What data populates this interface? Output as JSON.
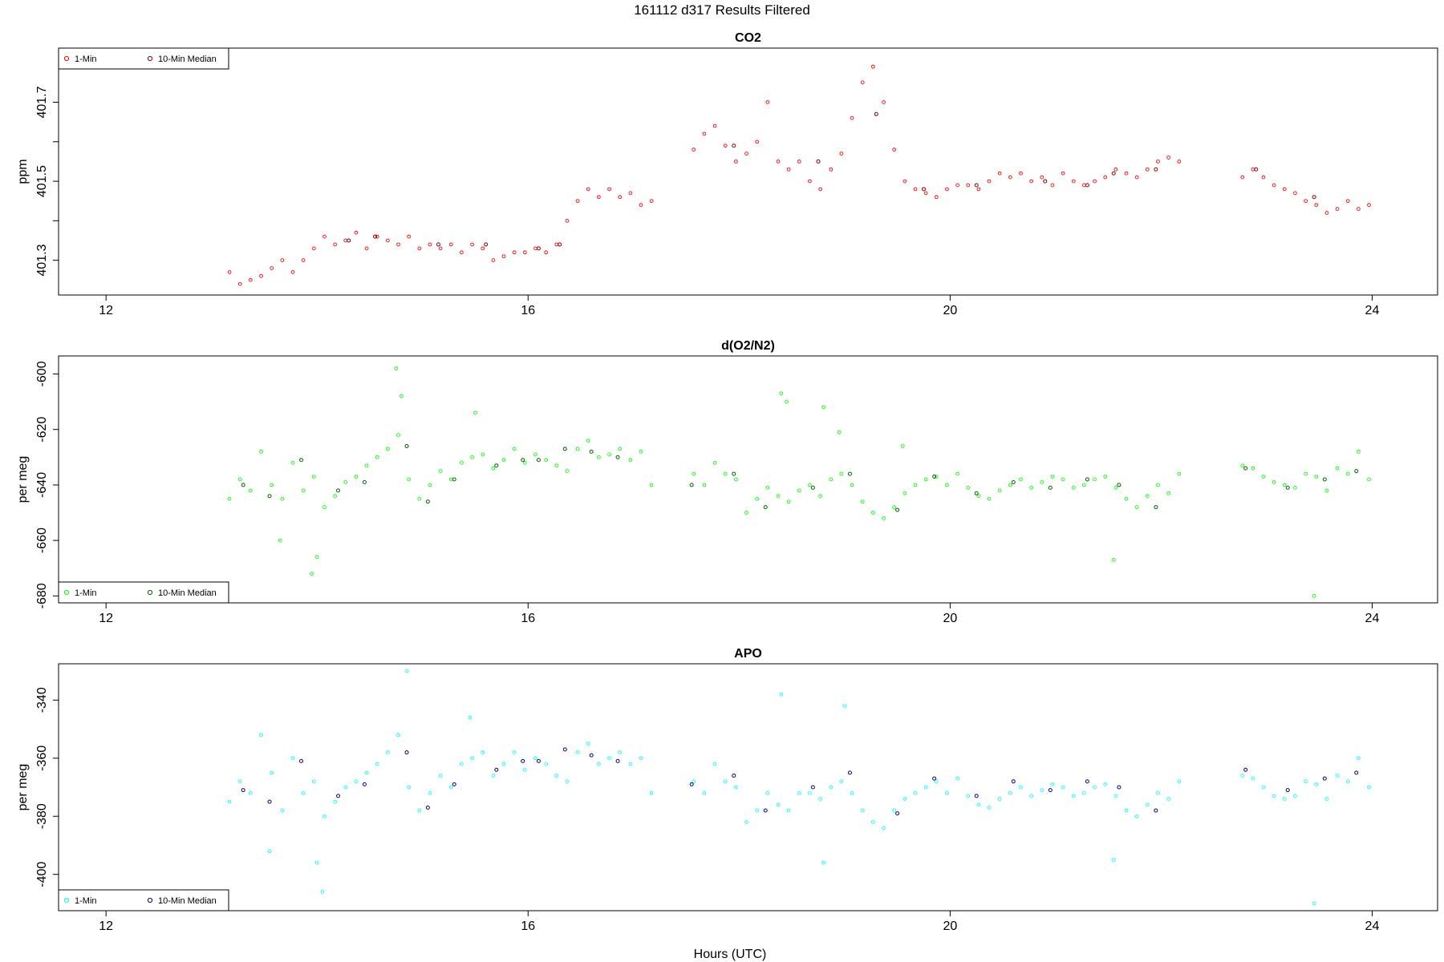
{
  "page_title": "161112   d317   Results Filtered",
  "chart_data": [
    {
      "type": "scatter",
      "title": "CO2",
      "ylabel": "ppm",
      "xlim": [
        11.55,
        24.62
      ],
      "ylim": [
        401.212,
        401.837
      ],
      "x_ticks": [
        "12",
        "16",
        "20",
        "24"
      ],
      "y_ticks": [
        "401.3",
        "401.5",
        "401.7"
      ],
      "y_minor_ticks": [
        401.4,
        401.6
      ],
      "legend": {
        "position": "top-left",
        "entries": [
          "1-Min",
          "10-Min Median"
        ]
      },
      "colors": {
        "one_min": "#ff0000",
        "median": "#8b0000"
      },
      "series": [
        {
          "name": "1-Min",
          "x": [
            13.17,
            13.27,
            13.37,
            13.47,
            13.57,
            13.67,
            13.77,
            13.87,
            13.97,
            14.07,
            14.17,
            14.27,
            14.37,
            14.47,
            14.57,
            14.67,
            14.77,
            14.87,
            14.97,
            15.07,
            15.17,
            15.27,
            15.37,
            15.47,
            15.57,
            15.67,
            15.77,
            15.87,
            15.97,
            16.07,
            16.17,
            16.27,
            16.37,
            16.47,
            16.57,
            16.67,
            16.77,
            16.87,
            16.97,
            17.07,
            17.17,
            17.57,
            17.67,
            17.77,
            17.87,
            17.97,
            18.07,
            18.17,
            18.27,
            18.37,
            18.47,
            18.57,
            18.67,
            18.77,
            18.87,
            18.97,
            19.07,
            19.17,
            19.27,
            19.37,
            19.47,
            19.57,
            19.67,
            19.77,
            19.87,
            19.97,
            20.07,
            20.17,
            20.27,
            20.37,
            20.47,
            20.57,
            20.67,
            20.77,
            20.87,
            20.97,
            21.07,
            21.17,
            21.27,
            21.37,
            21.47,
            21.57,
            21.67,
            21.77,
            21.87,
            21.97,
            22.07,
            22.17,
            22.77,
            22.87,
            22.97,
            23.07,
            23.17,
            23.27,
            23.37,
            23.47,
            23.57,
            23.67,
            23.77,
            23.87,
            23.97
          ],
          "y": [
            401.27,
            401.24,
            401.25,
            401.26,
            401.28,
            401.3,
            401.27,
            401.3,
            401.33,
            401.36,
            401.34,
            401.35,
            401.37,
            401.33,
            401.36,
            401.35,
            401.34,
            401.36,
            401.33,
            401.34,
            401.33,
            401.34,
            401.32,
            401.34,
            401.33,
            401.3,
            401.31,
            401.32,
            401.32,
            401.33,
            401.32,
            401.34,
            401.4,
            401.45,
            401.48,
            401.46,
            401.48,
            401.46,
            401.47,
            401.44,
            401.45,
            401.58,
            401.62,
            401.64,
            401.59,
            401.55,
            401.57,
            401.6,
            401.7,
            401.55,
            401.53,
            401.55,
            401.5,
            401.48,
            401.53,
            401.57,
            401.66,
            401.75,
            401.79,
            401.7,
            401.58,
            401.5,
            401.48,
            401.47,
            401.46,
            401.48,
            401.49,
            401.49,
            401.48,
            401.5,
            401.52,
            401.51,
            401.52,
            401.5,
            401.51,
            401.49,
            401.52,
            401.5,
            401.49,
            401.5,
            401.51,
            401.53,
            401.52,
            401.51,
            401.53,
            401.55,
            401.56,
            401.55,
            401.51,
            401.53,
            401.51,
            401.49,
            401.48,
            401.47,
            401.45,
            401.44,
            401.42,
            401.43,
            401.45,
            401.43,
            401.44
          ]
        },
        {
          "name": "10-Min Median",
          "x": [
            14.3,
            14.55,
            15.15,
            15.6,
            16.1,
            16.3,
            17.95,
            18.75,
            19.3,
            19.75,
            20.25,
            20.9,
            21.3,
            21.55,
            21.95,
            22.9,
            23.45
          ],
          "y": [
            401.35,
            401.36,
            401.34,
            401.34,
            401.33,
            401.34,
            401.59,
            401.55,
            401.67,
            401.48,
            401.49,
            401.5,
            401.49,
            401.52,
            401.53,
            401.53,
            401.46
          ]
        }
      ]
    },
    {
      "type": "scatter",
      "title": "d(O2/N2)",
      "ylabel": "per meg",
      "xlim": [
        11.55,
        24.62
      ],
      "ylim": [
        -682.5,
        -593.5
      ],
      "x_ticks": [
        "12",
        "16",
        "20",
        "24"
      ],
      "y_ticks": [
        "-600",
        "-620",
        "-640",
        "-660",
        "-680"
      ],
      "y_minor_ticks": [],
      "legend": {
        "position": "bottom-left",
        "entries": [
          "1-Min",
          "10-Min Median"
        ]
      },
      "colors": {
        "one_min": "#00ff00",
        "median": "#006400"
      },
      "series": [
        {
          "name": "1-Min",
          "x": [
            13.17,
            13.27,
            13.37,
            13.47,
            13.57,
            13.67,
            13.77,
            13.87,
            13.97,
            14.07,
            14.17,
            14.27,
            14.37,
            14.47,
            14.57,
            14.67,
            14.77,
            14.87,
            14.97,
            15.07,
            15.17,
            15.27,
            15.37,
            15.47,
            15.57,
            15.67,
            15.77,
            15.87,
            15.97,
            16.07,
            16.17,
            16.27,
            16.37,
            16.47,
            16.57,
            16.67,
            16.77,
            16.87,
            16.97,
            17.07,
            17.17,
            17.57,
            17.67,
            17.77,
            17.87,
            17.97,
            18.07,
            18.17,
            18.27,
            18.37,
            18.47,
            18.57,
            18.67,
            18.77,
            18.87,
            18.97,
            19.07,
            19.17,
            19.27,
            19.37,
            19.47,
            19.57,
            19.67,
            19.77,
            19.87,
            19.97,
            20.07,
            20.17,
            20.27,
            20.37,
            20.47,
            20.57,
            20.67,
            20.77,
            20.87,
            20.97,
            21.07,
            21.17,
            21.27,
            21.37,
            21.47,
            21.57,
            21.67,
            21.77,
            21.87,
            21.97,
            22.07,
            22.17,
            22.77,
            22.87,
            22.97,
            23.07,
            23.17,
            23.27,
            23.37,
            23.47,
            23.57,
            23.67,
            23.77,
            23.87,
            23.97,
            13.65,
            13.95,
            14.0,
            14.75,
            14.8,
            15.5,
            18.4,
            18.45,
            18.8,
            18.95,
            19.55,
            21.55,
            23.45
          ],
          "y": [
            -645,
            -638,
            -642,
            -628,
            -640,
            -645,
            -632,
            -642,
            -637,
            -648,
            -644,
            -639,
            -637,
            -633,
            -630,
            -627,
            -622,
            -638,
            -645,
            -640,
            -635,
            -638,
            -632,
            -630,
            -629,
            -634,
            -631,
            -627,
            -632,
            -629,
            -631,
            -633,
            -635,
            -627,
            -624,
            -630,
            -629,
            -627,
            -631,
            -628,
            -640,
            -636,
            -640,
            -632,
            -636,
            -638,
            -650,
            -645,
            -641,
            -644,
            -646,
            -642,
            -640,
            -644,
            -638,
            -636,
            -640,
            -646,
            -650,
            -652,
            -648,
            -643,
            -640,
            -638,
            -637,
            -640,
            -636,
            -641,
            -644,
            -645,
            -642,
            -640,
            -638,
            -641,
            -639,
            -637,
            -638,
            -641,
            -640,
            -638,
            -637,
            -641,
            -645,
            -648,
            -644,
            -640,
            -643,
            -636,
            -633,
            -634,
            -637,
            -639,
            -640,
            -641,
            -636,
            -637,
            -642,
            -634,
            -636,
            -628,
            -638,
            -660,
            -672,
            -666,
            -598,
            -608,
            -614,
            -607,
            -610,
            -612,
            -621,
            -626,
            -667,
            -680
          ]
        },
        {
          "name": "10-Min Median",
          "x": [
            13.3,
            13.55,
            13.85,
            14.2,
            14.45,
            14.85,
            15.05,
            15.3,
            15.7,
            15.95,
            16.1,
            16.35,
            16.6,
            16.85,
            17.55,
            17.95,
            18.25,
            18.7,
            19.05,
            19.5,
            19.85,
            20.25,
            20.6,
            20.95,
            21.3,
            21.6,
            21.95,
            22.8,
            23.2,
            23.55,
            23.85
          ],
          "y": [
            -640,
            -644,
            -631,
            -642,
            -639,
            -626,
            -646,
            -638,
            -633,
            -631,
            -631,
            -627,
            -628,
            -630,
            -640,
            -636,
            -648,
            -641,
            -636,
            -649,
            -637,
            -643,
            -639,
            -641,
            -638,
            -640,
            -648,
            -634,
            -641,
            -638,
            -635
          ]
        }
      ]
    },
    {
      "type": "scatter",
      "title": "APO",
      "ylabel": "per meg",
      "xlim": [
        11.55,
        24.62
      ],
      "ylim": [
        -412.5,
        -327.5
      ],
      "x_ticks": [
        "12",
        "16",
        "20",
        "24"
      ],
      "y_ticks": [
        "-340",
        "-360",
        "-380",
        "-400"
      ],
      "y_minor_ticks": [],
      "legend": {
        "position": "bottom-left",
        "entries": [
          "1-Min",
          "10-Min Median"
        ]
      },
      "colors": {
        "one_min": "#00ffff",
        "median": "#00008b"
      },
      "series": [
        {
          "name": "1-Min",
          "x": [
            13.17,
            13.27,
            13.37,
            13.47,
            13.57,
            13.67,
            13.77,
            13.87,
            13.97,
            14.07,
            14.17,
            14.27,
            14.37,
            14.47,
            14.57,
            14.67,
            14.77,
            14.87,
            14.97,
            15.07,
            15.17,
            15.27,
            15.37,
            15.47,
            15.57,
            15.67,
            15.77,
            15.87,
            15.97,
            16.07,
            16.17,
            16.27,
            16.37,
            16.47,
            16.57,
            16.67,
            16.77,
            16.87,
            16.97,
            17.07,
            17.17,
            17.57,
            17.67,
            17.77,
            17.87,
            17.97,
            18.07,
            18.17,
            18.27,
            18.37,
            18.47,
            18.57,
            18.67,
            18.77,
            18.87,
            18.97,
            19.07,
            19.17,
            19.27,
            19.37,
            19.47,
            19.57,
            19.67,
            19.77,
            19.87,
            19.97,
            20.07,
            20.17,
            20.27,
            20.37,
            20.47,
            20.57,
            20.67,
            20.77,
            20.87,
            20.97,
            21.07,
            21.17,
            21.27,
            21.37,
            21.47,
            21.57,
            21.67,
            21.77,
            21.87,
            21.97,
            22.07,
            22.17,
            22.77,
            22.87,
            22.97,
            23.07,
            23.17,
            23.27,
            23.37,
            23.47,
            23.57,
            23.67,
            23.77,
            23.87,
            23.97,
            13.55,
            14.0,
            14.05,
            14.85,
            15.45,
            18.4,
            18.8,
            19.0,
            21.55,
            23.45
          ],
          "y": [
            -375,
            -368,
            -372,
            -352,
            -365,
            -378,
            -360,
            -372,
            -368,
            -380,
            -375,
            -370,
            -368,
            -365,
            -362,
            -358,
            -352,
            -370,
            -378,
            -372,
            -366,
            -370,
            -362,
            -360,
            -358,
            -366,
            -362,
            -358,
            -364,
            -360,
            -362,
            -366,
            -368,
            -358,
            -355,
            -362,
            -360,
            -358,
            -362,
            -360,
            -372,
            -368,
            -372,
            -362,
            -368,
            -370,
            -382,
            -378,
            -372,
            -376,
            -378,
            -372,
            -372,
            -374,
            -370,
            -368,
            -372,
            -378,
            -382,
            -384,
            -378,
            -374,
            -372,
            -370,
            -368,
            -372,
            -367,
            -373,
            -376,
            -377,
            -374,
            -372,
            -370,
            -373,
            -371,
            -369,
            -370,
            -373,
            -372,
            -370,
            -369,
            -373,
            -378,
            -380,
            -376,
            -372,
            -374,
            -368,
            -366,
            -367,
            -370,
            -373,
            -374,
            -373,
            -368,
            -369,
            -374,
            -366,
            -368,
            -360,
            -370,
            -392,
            -396,
            -406,
            -330,
            -346,
            -338,
            -396,
            -342,
            -395,
            -410
          ]
        },
        {
          "name": "10-Min Median",
          "x": [
            13.3,
            13.55,
            13.85,
            14.2,
            14.45,
            14.85,
            15.05,
            15.3,
            15.7,
            15.95,
            16.1,
            16.35,
            16.6,
            16.85,
            17.55,
            17.95,
            18.25,
            18.7,
            19.05,
            19.5,
            19.85,
            20.25,
            20.6,
            20.95,
            21.3,
            21.6,
            21.95,
            22.8,
            23.2,
            23.55,
            23.85
          ],
          "y": [
            -371,
            -375,
            -361,
            -373,
            -369,
            -358,
            -377,
            -369,
            -364,
            -361,
            -361,
            -357,
            -359,
            -361,
            -369,
            -366,
            -378,
            -370,
            -365,
            -379,
            -367,
            -373,
            -368,
            -371,
            -368,
            -370,
            -378,
            -364,
            -371,
            -367,
            -365
          ]
        }
      ]
    }
  ],
  "x_axis_title": "Hours (UTC)"
}
